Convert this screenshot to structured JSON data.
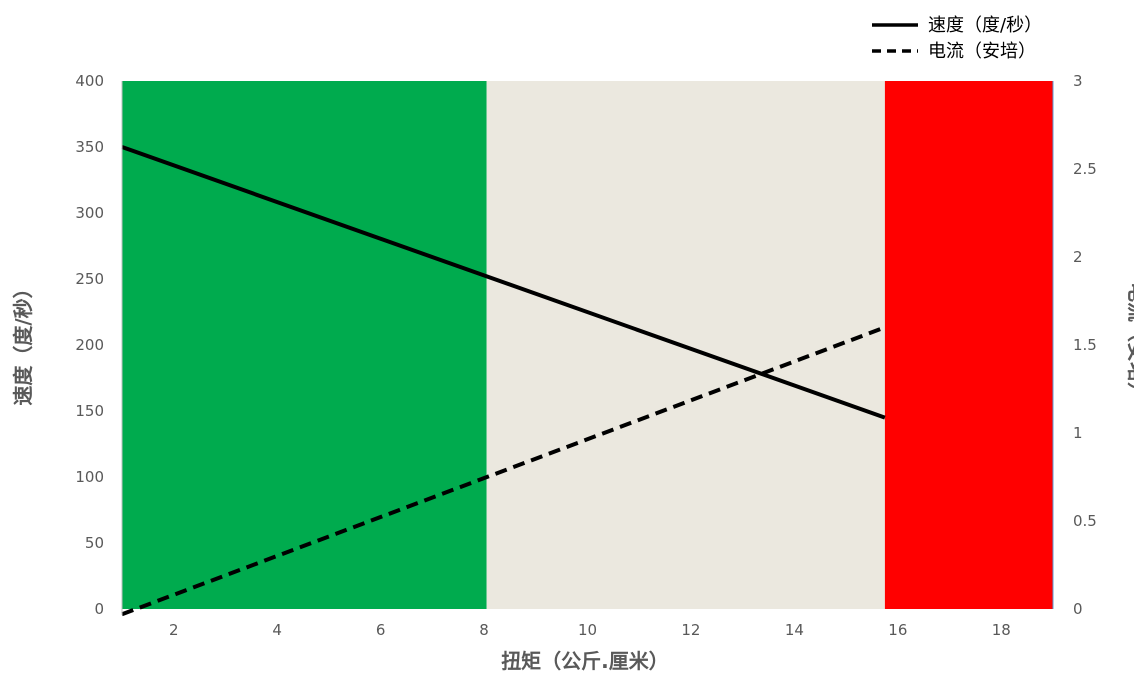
{
  "chart_data": {
    "type": "line",
    "xlabel": "扭矩（公斤.厘米）",
    "ylabel_left": "速度（度/秒）",
    "ylabel_right": "电流（安培）",
    "xlim": [
      1,
      19
    ],
    "xticks": [
      2,
      4,
      6,
      8,
      10,
      12,
      14,
      16,
      18
    ],
    "ylim_left": [
      0,
      400
    ],
    "yticks_left": [
      0,
      50,
      100,
      150,
      200,
      250,
      300,
      350,
      400
    ],
    "ylim_right": [
      0,
      3
    ],
    "yticks_right": [
      0,
      0.5,
      1,
      1.5,
      2,
      2.5,
      3
    ],
    "grid": false,
    "legend_position": "top-right",
    "regions": [
      {
        "x_start": 1,
        "x_end": 8.05,
        "color": "#00ab4e"
      },
      {
        "x_start": 8.05,
        "x_end": 15.75,
        "color": "#ebe8df"
      },
      {
        "x_start": 15.75,
        "x_end": 19,
        "color": "#ff0000"
      }
    ],
    "series": [
      {
        "name": "速度（度/秒）",
        "axis": "left",
        "style": "solid",
        "color": "#000000",
        "x": [
          1,
          15.75
        ],
        "y": [
          350,
          145
        ]
      },
      {
        "name": "电流（安培）",
        "axis": "right",
        "style": "dashed",
        "color": "#000000",
        "x": [
          1,
          15.75
        ],
        "y": [
          -0.03,
          1.6
        ]
      }
    ]
  }
}
